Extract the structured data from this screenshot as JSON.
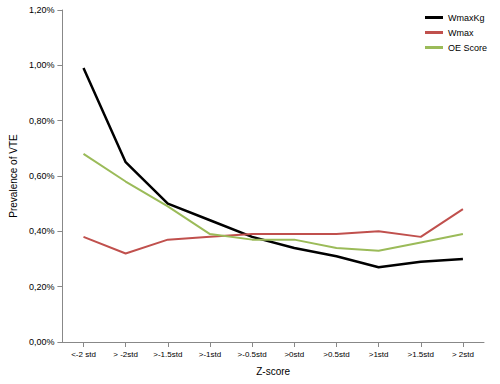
{
  "chart_data": {
    "type": "line",
    "x_label": "Z-score",
    "y_label": "Prevalence of VTE",
    "categories": [
      "<-2 std",
      "> -2std",
      ">-1.5std",
      ">-1std",
      ">-0.5std",
      ">0std",
      ">0.5std",
      ">1std",
      ">1.5std",
      "> 2std"
    ],
    "series": [
      {
        "name": "WmaxKg",
        "color": "#000000",
        "values": [
          0.99,
          0.65,
          0.5,
          0.44,
          0.38,
          0.34,
          0.31,
          0.27,
          0.29,
          0.3
        ]
      },
      {
        "name": "Wmax",
        "color": "#c0504d",
        "values": [
          0.38,
          0.32,
          0.37,
          0.38,
          0.39,
          0.39,
          0.39,
          0.4,
          0.38,
          0.48
        ]
      },
      {
        "name": "OE Score",
        "color": "#9bbb59",
        "values": [
          0.68,
          0.58,
          0.49,
          0.39,
          0.37,
          0.37,
          0.34,
          0.33,
          0.36,
          0.39
        ]
      }
    ],
    "ylim": [
      0,
      1.2
    ],
    "yticks": [
      {
        "value": 0,
        "label": "0,00%"
      },
      {
        "value": 0.2,
        "label": "0,20%"
      },
      {
        "value": 0.4,
        "label": "0,40%"
      },
      {
        "value": 0.6,
        "label": "0,60%"
      },
      {
        "value": 0.8,
        "label": "0,80%"
      },
      {
        "value": 1.0,
        "label": "1,00%"
      },
      {
        "value": 1.2,
        "label": "1,20%"
      }
    ],
    "grid": false,
    "legend": "top-right"
  }
}
